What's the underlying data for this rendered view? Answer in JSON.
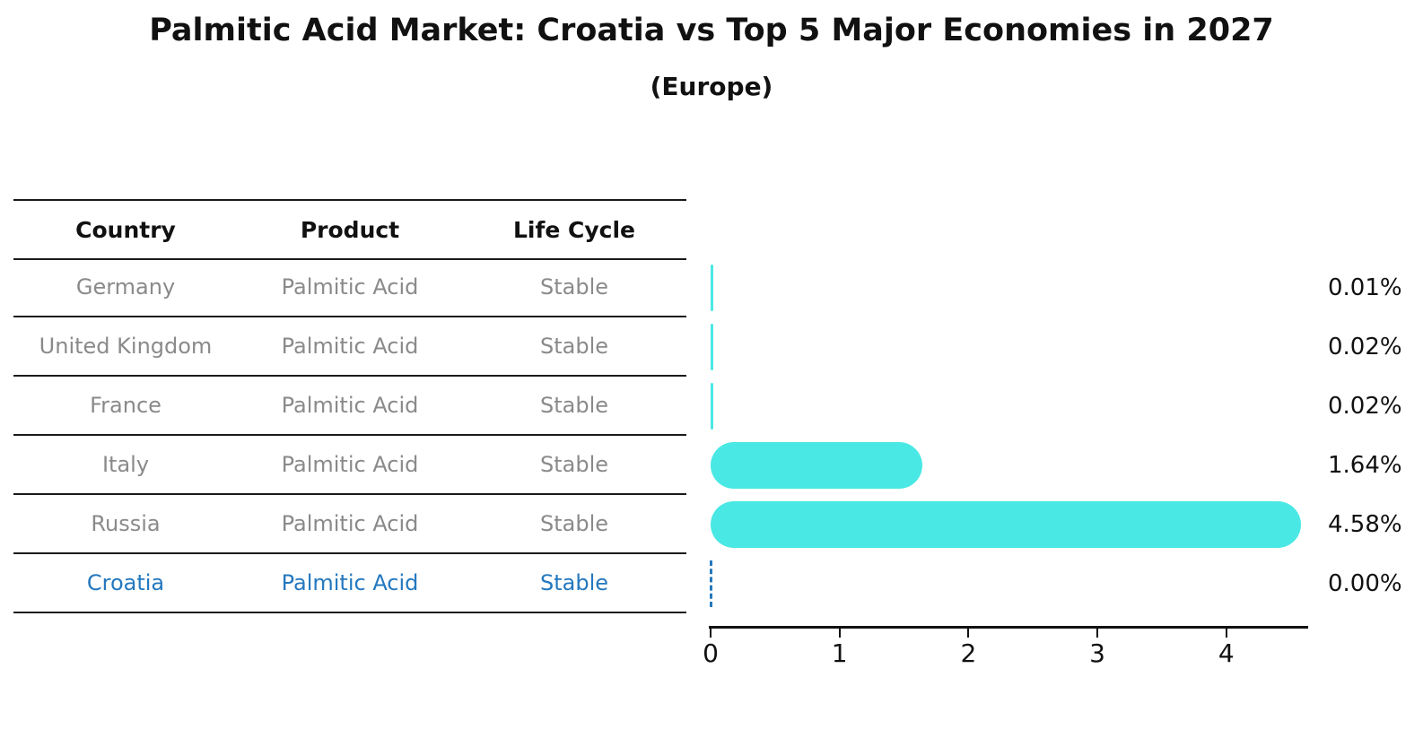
{
  "title": "Palmitic Acid Market: Croatia vs Top 5 Major Economies in 2027",
  "subtitle": "(Europe)",
  "table": {
    "headers": [
      "Country",
      "Product",
      "Life Cycle"
    ],
    "rows": [
      {
        "country": "Germany",
        "product": "Palmitic Acid",
        "life_cycle": "Stable",
        "value": 0.01,
        "value_label": "0.01%",
        "highlight": false
      },
      {
        "country": "United Kingdom",
        "product": "Palmitic Acid",
        "life_cycle": "Stable",
        "value": 0.02,
        "value_label": "0.02%",
        "highlight": false
      },
      {
        "country": "France",
        "product": "Palmitic Acid",
        "life_cycle": "Stable",
        "value": 0.02,
        "value_label": "0.02%",
        "highlight": false
      },
      {
        "country": "Italy",
        "product": "Palmitic Acid",
        "life_cycle": "Stable",
        "value": 1.64,
        "value_label": "1.64%",
        "highlight": false
      },
      {
        "country": "Russia",
        "product": "Palmitic Acid",
        "life_cycle": "Stable",
        "value": 4.58,
        "value_label": "4.58%",
        "highlight": false
      },
      {
        "country": "Croatia",
        "product": "Palmitic Acid",
        "life_cycle": "Stable",
        "value": 0.0,
        "value_label": "0.00%",
        "highlight": true
      }
    ]
  },
  "chart_data": {
    "type": "bar",
    "orientation": "horizontal",
    "title": "Palmitic Acid Market: Croatia vs Top 5 Major Economies in 2027",
    "subtitle": "(Europe)",
    "categories": [
      "Germany",
      "United Kingdom",
      "France",
      "Italy",
      "Russia",
      "Croatia"
    ],
    "values": [
      0.01,
      0.02,
      0.02,
      1.64,
      4.58,
      0.0
    ],
    "value_labels": [
      "0.01%",
      "0.02%",
      "0.02%",
      "1.64%",
      "4.58%",
      "0.00%"
    ],
    "xlabel": "",
    "ylabel": "",
    "xlim": [
      0,
      4.65
    ],
    "xticks": [
      0,
      1,
      2,
      3,
      4
    ],
    "xtick_labels": [
      "0",
      "1",
      "2",
      "3",
      "4"
    ],
    "grid": false,
    "legend_position": "none"
  },
  "colors": {
    "bar": "#4ae8e4",
    "highlight": "#2478bf",
    "row_text": "#8a8a8a",
    "text": "#111111"
  }
}
